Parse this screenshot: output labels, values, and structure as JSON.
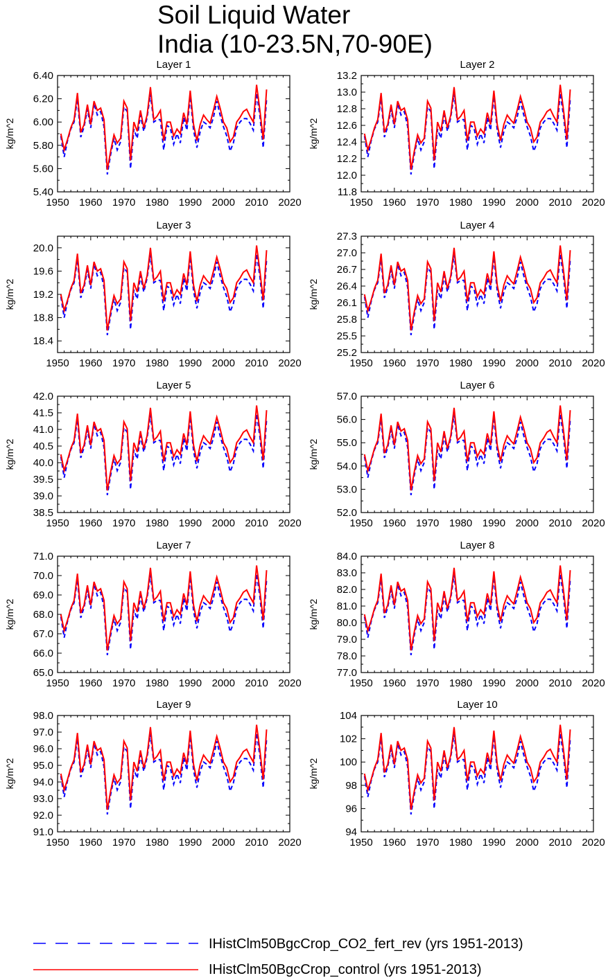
{
  "figure": {
    "title_line1": "Soil Liquid Water",
    "title_line2": "India (10-23.5N,70-90E)"
  },
  "legend": [
    {
      "label": "IHistClm50BgcCrop_CO2_fert_rev (yrs 1951-2013)",
      "color": "#0000ff",
      "style": "dashed"
    },
    {
      "label": "IHistClm50BgcCrop_control (yrs 1951-2013)",
      "color": "#ff0000",
      "style": "solid"
    }
  ],
  "chart_data": [
    {
      "type": "line",
      "title": "Layer 1",
      "ylabel": "kg/m^2",
      "xlim": [
        1950,
        2020
      ],
      "ylim": [
        5.4,
        6.4
      ],
      "xticks": [
        "1950",
        "1960",
        "1970",
        "1980",
        "1990",
        "2000",
        "2010",
        "2020"
      ],
      "yticks": [
        "5.40",
        "5.60",
        "5.80",
        "6.00",
        "6.20",
        "6.40"
      ]
    },
    {
      "type": "line",
      "title": "Layer 2",
      "ylabel": "kg/m^2",
      "xlim": [
        1950,
        2020
      ],
      "ylim": [
        11.8,
        13.2
      ],
      "xticks": [
        "1950",
        "1960",
        "1970",
        "1980",
        "1990",
        "2000",
        "2010",
        "2020"
      ],
      "yticks": [
        "11.8",
        "12.0",
        "12.2",
        "12.4",
        "12.6",
        "12.8",
        "13.0",
        "13.2"
      ]
    },
    {
      "type": "line",
      "title": "Layer 3",
      "ylabel": "kg/m^2",
      "xlim": [
        1950,
        2020
      ],
      "ylim": [
        18.2,
        20.2
      ],
      "xticks": [
        "1950",
        "1960",
        "1970",
        "1980",
        "1990",
        "2000",
        "2010",
        "2020"
      ],
      "yticks": [
        "18.4",
        "18.8",
        "19.2",
        "19.6",
        "20.0"
      ]
    },
    {
      "type": "line",
      "title": "Layer 4",
      "ylabel": "kg/m^2",
      "xlim": [
        1950,
        2020
      ],
      "ylim": [
        25.2,
        27.3
      ],
      "xticks": [
        "1950",
        "1960",
        "1970",
        "1980",
        "1990",
        "2000",
        "2010",
        "2020"
      ],
      "yticks": [
        "25.2",
        "25.5",
        "25.8",
        "26.1",
        "26.4",
        "26.7",
        "27.0",
        "27.3"
      ]
    },
    {
      "type": "line",
      "title": "Layer 5",
      "ylabel": "kg/m^2",
      "xlim": [
        1950,
        2020
      ],
      "ylim": [
        38.5,
        42.0
      ],
      "xticks": [
        "1950",
        "1960",
        "1970",
        "1980",
        "1990",
        "2000",
        "2010",
        "2020"
      ],
      "yticks": [
        "38.5",
        "39.0",
        "39.5",
        "40.0",
        "40.5",
        "41.0",
        "41.5",
        "42.0"
      ]
    },
    {
      "type": "line",
      "title": "Layer 6",
      "ylabel": "kg/m^2",
      "xlim": [
        1950,
        2020
      ],
      "ylim": [
        52.0,
        57.0
      ],
      "xticks": [
        "1950",
        "1960",
        "1970",
        "1980",
        "1990",
        "2000",
        "2010",
        "2020"
      ],
      "yticks": [
        "52.0",
        "53.0",
        "54.0",
        "55.0",
        "56.0",
        "57.0"
      ]
    },
    {
      "type": "line",
      "title": "Layer 7",
      "ylabel": "kg/m^2",
      "xlim": [
        1950,
        2020
      ],
      "ylim": [
        65.0,
        71.0
      ],
      "xticks": [
        "1950",
        "1960",
        "1970",
        "1980",
        "1990",
        "2000",
        "2010",
        "2020"
      ],
      "yticks": [
        "65.0",
        "66.0",
        "67.0",
        "68.0",
        "69.0",
        "70.0",
        "71.0"
      ]
    },
    {
      "type": "line",
      "title": "Layer 8",
      "ylabel": "kg/m^2",
      "xlim": [
        1950,
        2020
      ],
      "ylim": [
        77.0,
        84.0
      ],
      "xticks": [
        "1950",
        "1960",
        "1970",
        "1980",
        "1990",
        "2000",
        "2010",
        "2020"
      ],
      "yticks": [
        "77.0",
        "78.0",
        "79.0",
        "80.0",
        "81.0",
        "82.0",
        "83.0",
        "84.0"
      ]
    },
    {
      "type": "line",
      "title": "Layer 9",
      "ylabel": "kg/m^2",
      "xlim": [
        1950,
        2020
      ],
      "ylim": [
        91.0,
        98.0
      ],
      "xticks": [
        "1950",
        "1960",
        "1970",
        "1980",
        "1990",
        "2000",
        "2010",
        "2020"
      ],
      "yticks": [
        "91.0",
        "92.0",
        "93.0",
        "94.0",
        "95.0",
        "96.0",
        "97.0",
        "98.0"
      ]
    },
    {
      "type": "line",
      "title": "Layer 10",
      "ylabel": "kg/m^2",
      "xlim": [
        1950,
        2020
      ],
      "ylim": [
        94,
        104
      ],
      "xticks": [
        "1950",
        "1960",
        "1970",
        "1980",
        "1990",
        "2000",
        "2010",
        "2020"
      ],
      "yticks": [
        "94",
        "96",
        "98",
        "100",
        "102",
        "104"
      ]
    }
  ],
  "series_shape": {
    "years": [
      1951,
      1952,
      1953,
      1954,
      1955,
      1956,
      1957,
      1958,
      1959,
      1960,
      1961,
      1962,
      1963,
      1964,
      1965,
      1966,
      1967,
      1968,
      1969,
      1970,
      1971,
      1972,
      1973,
      1974,
      1975,
      1976,
      1977,
      1978,
      1979,
      1980,
      1981,
      1982,
      1983,
      1984,
      1985,
      1986,
      1987,
      1988,
      1989,
      1990,
      1991,
      1992,
      1993,
      1994,
      1995,
      1996,
      1997,
      1998,
      1999,
      2000,
      2001,
      2002,
      2003,
      2004,
      2005,
      2006,
      2007,
      2008,
      2009,
      2010,
      2011,
      2012,
      2013
    ],
    "control_fraction": [
      0.5,
      0.36,
      0.45,
      0.55,
      0.62,
      0.85,
      0.51,
      0.58,
      0.75,
      0.58,
      0.78,
      0.7,
      0.72,
      0.62,
      0.19,
      0.35,
      0.49,
      0.42,
      0.46,
      0.78,
      0.72,
      0.27,
      0.6,
      0.52,
      0.7,
      0.55,
      0.66,
      0.9,
      0.62,
      0.65,
      0.7,
      0.44,
      0.6,
      0.6,
      0.48,
      0.54,
      0.5,
      0.68,
      0.58,
      0.87,
      0.58,
      0.44,
      0.58,
      0.66,
      0.62,
      0.59,
      0.7,
      0.82,
      0.72,
      0.6,
      0.55,
      0.43,
      0.47,
      0.6,
      0.64,
      0.69,
      0.71,
      0.65,
      0.6,
      0.92,
      0.7,
      0.45,
      0.88
    ],
    "co2_fert_rev_fraction": [
      0.48,
      0.3,
      0.44,
      0.54,
      0.6,
      0.8,
      0.47,
      0.56,
      0.71,
      0.55,
      0.76,
      0.66,
      0.69,
      0.56,
      0.15,
      0.32,
      0.46,
      0.36,
      0.43,
      0.73,
      0.69,
      0.2,
      0.54,
      0.46,
      0.66,
      0.52,
      0.64,
      0.84,
      0.6,
      0.62,
      0.62,
      0.36,
      0.57,
      0.55,
      0.41,
      0.5,
      0.42,
      0.64,
      0.53,
      0.82,
      0.53,
      0.38,
      0.52,
      0.6,
      0.58,
      0.55,
      0.64,
      0.78,
      0.66,
      0.56,
      0.48,
      0.35,
      0.42,
      0.55,
      0.6,
      0.63,
      0.63,
      0.59,
      0.53,
      0.85,
      0.65,
      0.38,
      0.8
    ],
    "control_divergence": [
      0,
      0,
      0,
      0,
      0,
      0,
      0,
      0,
      0,
      0,
      0,
      0,
      0,
      0,
      0,
      0,
      0,
      0,
      0,
      0,
      0,
      0,
      0,
      0,
      0,
      0,
      0,
      0,
      0,
      0,
      0,
      0,
      0,
      0,
      0,
      0,
      0,
      0,
      0,
      0,
      0,
      0,
      0,
      0,
      0,
      0,
      0,
      0,
      0,
      0,
      0,
      0,
      0,
      0,
      0,
      0,
      0,
      0,
      0,
      0,
      0,
      0,
      0
    ]
  }
}
